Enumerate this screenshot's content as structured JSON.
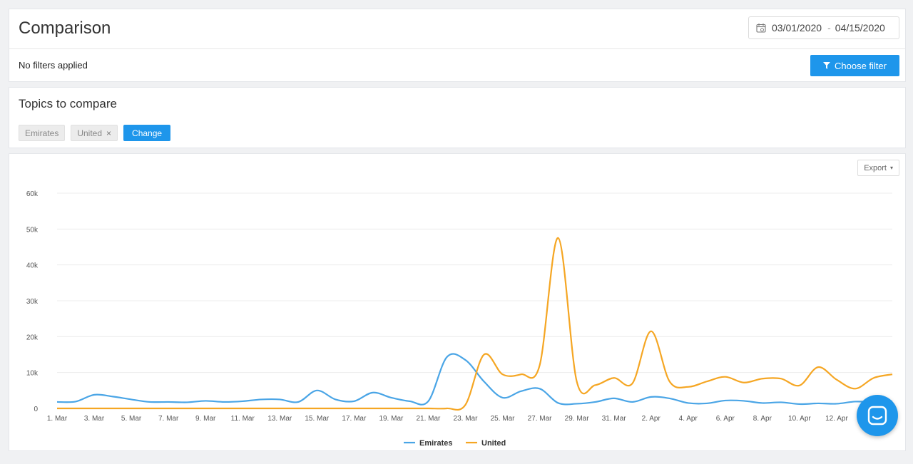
{
  "header": {
    "title": "Comparison",
    "date_start": "03/01/2020",
    "date_separator": "-",
    "date_end": "04/15/2020",
    "calendar_icon": "calendar-icon"
  },
  "filters": {
    "status": "No filters applied",
    "button_label": "Choose filter",
    "button_icon": "filter-icon"
  },
  "topics": {
    "title": "Topics to compare",
    "chips": [
      {
        "label": "Emirates",
        "removable": false
      },
      {
        "label": "United",
        "removable": true,
        "remove_symbol": "×"
      }
    ],
    "change_label": "Change"
  },
  "export": {
    "label": "Export",
    "caret": "▾"
  },
  "colors": {
    "accent": "#1e96eb",
    "emirates": "#4aa5e6",
    "united": "#f5a623"
  },
  "chart_data": {
    "type": "line",
    "xlabel": "",
    "ylabel": "",
    "ylim": [
      0,
      60000
    ],
    "y_ticks": [
      0,
      10000,
      20000,
      30000,
      40000,
      50000,
      60000
    ],
    "y_tick_labels": [
      "0",
      "10k",
      "20k",
      "30k",
      "40k",
      "50k",
      "60k"
    ],
    "x": [
      "1. Mar",
      "2. Mar",
      "3. Mar",
      "4. Mar",
      "5. Mar",
      "6. Mar",
      "7. Mar",
      "8. Mar",
      "9. Mar",
      "10. Mar",
      "11. Mar",
      "12. Mar",
      "13. Mar",
      "14. Mar",
      "15. Mar",
      "16. Mar",
      "17. Mar",
      "18. Mar",
      "19. Mar",
      "20. Mar",
      "21. Mar",
      "22. Mar",
      "23. Mar",
      "24. Mar",
      "25. Mar",
      "26. Mar",
      "27. Mar",
      "28. Mar",
      "29. Mar",
      "30. Mar",
      "31. Mar",
      "1. Apr",
      "2. Apr",
      "3. Apr",
      "4. Apr",
      "5. Apr",
      "6. Apr",
      "7. Apr",
      "8. Apr",
      "9. Apr",
      "10. Apr",
      "11. Apr",
      "12. Apr",
      "13. Apr",
      "14. Apr",
      "15. Apr"
    ],
    "x_tick_labels": [
      "1. Mar",
      "3. Mar",
      "5. Mar",
      "7. Mar",
      "9. Mar",
      "11. Mar",
      "13. Mar",
      "15. Mar",
      "17. Mar",
      "19. Mar",
      "21. Mar",
      "23. Mar",
      "25. Mar",
      "27. Mar",
      "29. Mar",
      "31. Mar",
      "2. Apr",
      "4. Apr",
      "6. Apr",
      "8. Apr",
      "10. Apr",
      "12. Apr"
    ],
    "x_tick_step": 2,
    "series": [
      {
        "name": "Emirates",
        "color": "#4aa5e6",
        "values": [
          1800,
          1900,
          3800,
          3300,
          2500,
          1800,
          1800,
          1700,
          2100,
          1800,
          2000,
          2500,
          2500,
          1800,
          5000,
          2500,
          2000,
          4400,
          3000,
          2000,
          2000,
          14300,
          13500,
          7500,
          3000,
          4800,
          5500,
          1500,
          1300,
          1800,
          2800,
          1800,
          3200,
          2800,
          1500,
          1400,
          2200,
          2100,
          1500,
          1700,
          1200,
          1400,
          1300,
          1900,
          1800,
          2000
        ]
      },
      {
        "name": "United",
        "color": "#f5a623",
        "values": [
          0,
          0,
          0,
          0,
          0,
          0,
          0,
          0,
          0,
          0,
          0,
          0,
          0,
          0,
          0,
          0,
          0,
          0,
          0,
          0,
          0,
          0,
          1000,
          15000,
          9500,
          9500,
          12000,
          47500,
          7500,
          6500,
          8500,
          7000,
          21500,
          7500,
          6000,
          7500,
          8800,
          7200,
          8300,
          8300,
          6400,
          11500,
          8000,
          5500,
          8500,
          9500
        ]
      }
    ],
    "legend": {
      "position": "bottom-center",
      "entries": [
        "Emirates",
        "United"
      ]
    },
    "grid": true
  }
}
